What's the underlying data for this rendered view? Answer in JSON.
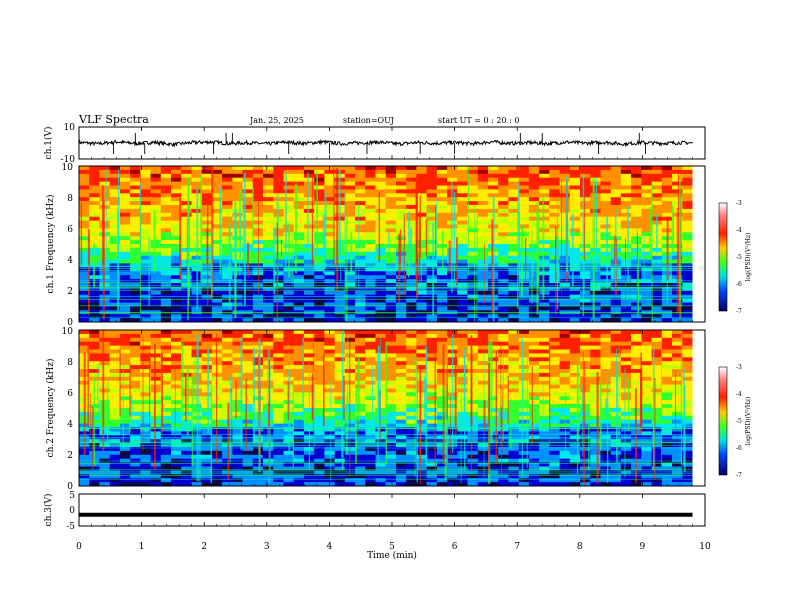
{
  "header": {
    "title": "VLF Spectra",
    "date": "Jan. 25, 2025",
    "station": "station=OUJ",
    "start_ut": "start UT =   0 : 20 : 0"
  },
  "chart_data": [
    {
      "type": "line",
      "panel": "ch1-waveform",
      "ylabel": "ch.1(V)",
      "ylim": [
        -10,
        10
      ],
      "yticks": [
        "10",
        "-10"
      ],
      "x": [
        0.0,
        0.3,
        0.6,
        0.9,
        1.2,
        1.5,
        1.8,
        2.1,
        2.4,
        2.7,
        3.0,
        3.3,
        3.6,
        3.9,
        4.2,
        4.5,
        4.8,
        5.1,
        5.4,
        5.7,
        6.0,
        6.3,
        6.6,
        6.9,
        7.2,
        7.5,
        7.8,
        8.1,
        8.4,
        8.7,
        9.0,
        9.3,
        9.6,
        9.8
      ],
      "values": [
        0.5,
        -0.8,
        1.2,
        -0.5,
        0.7,
        -1.5,
        0.4,
        1.0,
        -0.6,
        0.3,
        -0.9,
        0.8,
        -0.4,
        1.1,
        -0.7,
        0.2,
        0.9,
        -1.0,
        0.5,
        -0.3,
        0.6,
        -0.8,
        1.3,
        -0.5,
        0.4,
        -0.6,
        0.9,
        -0.2,
        0.7,
        -1.1,
        0.5,
        -0.4,
        0.3,
        0.0
      ]
    },
    {
      "type": "heatmap",
      "panel": "ch1-spectrogram",
      "ylabel": "ch.1 Frequency (kHz)",
      "ylim": [
        0,
        10
      ],
      "yticks": [
        "0",
        "2",
        "4",
        "6",
        "8",
        "10"
      ],
      "colorbar": {
        "label": "log(PSD)(V²/Hz)",
        "range": [
          -7,
          -3
        ],
        "ticks": [
          "-3",
          "-4",
          "-5",
          "-6",
          "-7"
        ]
      }
    },
    {
      "type": "heatmap",
      "panel": "ch2-spectrogram",
      "ylabel": "ch.2 Frequency (kHz)",
      "ylim": [
        0,
        10
      ],
      "yticks": [
        "0",
        "2",
        "4",
        "6",
        "8",
        "10"
      ],
      "colorbar": {
        "label": "log(PSD)(V²/Hz)",
        "range": [
          -7,
          -3
        ],
        "ticks": [
          "-3",
          "-4",
          "-5",
          "-6",
          "-7"
        ]
      }
    },
    {
      "type": "line",
      "panel": "ch3-waveform",
      "ylabel": "ch.3(V)",
      "ylim": [
        -5,
        5
      ],
      "yticks": [
        "5",
        "0",
        "-5"
      ],
      "x": [
        0.0,
        9.8
      ],
      "values": [
        -1.5,
        -1.5
      ]
    }
  ],
  "xaxis": {
    "label": "Time (min)",
    "range": [
      0,
      10
    ],
    "ticks": [
      "0",
      "1",
      "2",
      "3",
      "4",
      "5",
      "6",
      "7",
      "8",
      "9",
      "10"
    ]
  },
  "colorscale": [
    "#08084a",
    "#0000d0",
    "#0090ff",
    "#00e8e8",
    "#30ff30",
    "#c8ff00",
    "#ffee00",
    "#ff9000",
    "#ff2000",
    "#a00000"
  ]
}
